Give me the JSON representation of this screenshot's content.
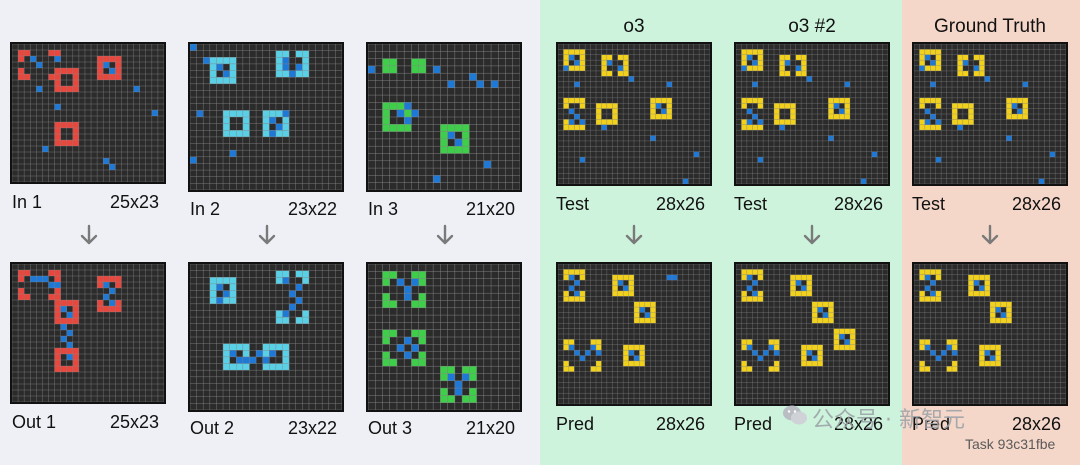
{
  "colors": {
    "left_bg": "#eef0f5",
    "o3_bg": "#cdf3dc",
    "gt_bg": "#f5d7c9",
    "grid_bg": "#2b2b2b",
    "grid_line": "#8a8a8a",
    "red": "#e8473e",
    "blue": "#1e78d6",
    "cyan": "#5ad0e6",
    "green": "#3fce4a",
    "yellow": "#f2d11c",
    "arrow": "#7a7a7a"
  },
  "headers": {
    "o3": "o3",
    "o3_2": "o3 #2",
    "ground_truth": "Ground Truth"
  },
  "examples": [
    {
      "in_label": "In 1",
      "in_size": "25x23",
      "out_label": "Out 1",
      "out_size": "25x23",
      "accent": "red"
    },
    {
      "in_label": "In 2",
      "in_size": "23x22",
      "out_label": "Out 2",
      "out_size": "23x22",
      "accent": "cyan"
    },
    {
      "in_label": "In 3",
      "in_size": "21x20",
      "out_label": "Out 3",
      "out_size": "21x20",
      "accent": "green"
    }
  ],
  "tests": [
    {
      "top_label": "Test",
      "top_size": "28x26",
      "bottom_label": "Pred",
      "bottom_size": "28x26"
    },
    {
      "top_label": "Test",
      "top_size": "28x26",
      "bottom_label": "Pred",
      "bottom_size": "28x26"
    },
    {
      "top_label": "Test",
      "top_size": "28x26",
      "bottom_label": "Pred",
      "bottom_size": "28x26"
    }
  ],
  "watermark": {
    "icon": "wechat-icon",
    "text": "公众号 · 新智元"
  },
  "task_id": "Task 93c31fbe"
}
